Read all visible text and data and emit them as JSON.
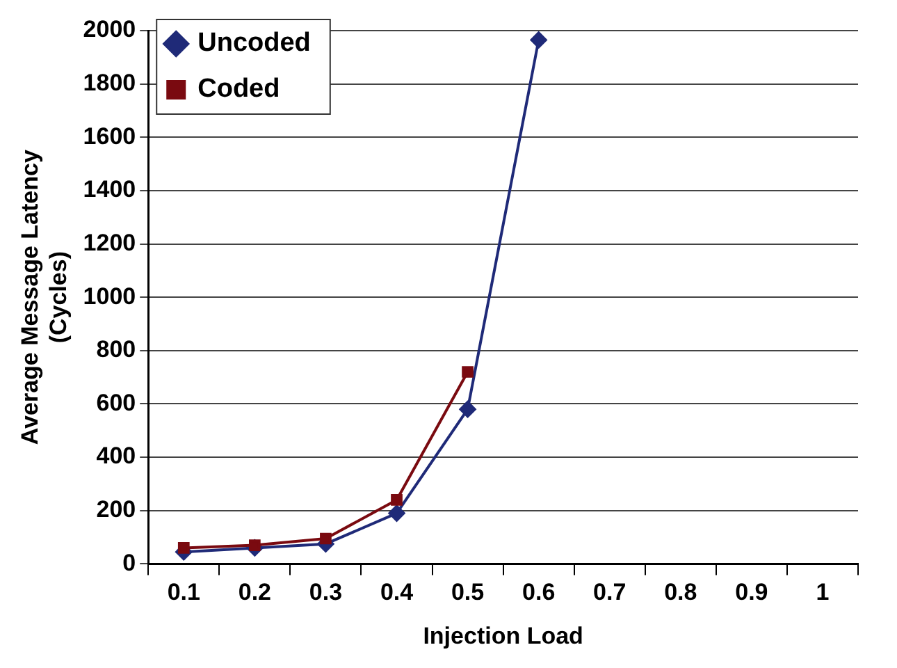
{
  "chart_data": {
    "type": "line",
    "xlabel": "Injection Load",
    "ylabel": "Average Message Latency (Cycles)",
    "categories": [
      "0.1",
      "0.2",
      "0.3",
      "0.4",
      "0.5",
      "0.6",
      "0.7",
      "0.8",
      "0.9",
      "1"
    ],
    "series": [
      {
        "name": "Uncoded",
        "color": "#1f2a78",
        "marker": "diamond",
        "values": [
          45,
          60,
          75,
          190,
          580,
          1965,
          null,
          null,
          null,
          null
        ]
      },
      {
        "name": "Coded",
        "color": "#7a0a10",
        "marker": "square",
        "values": [
          60,
          70,
          95,
          240,
          720,
          null,
          null,
          null,
          null,
          null
        ]
      }
    ],
    "ylim": [
      0,
      2000
    ],
    "yticks": [
      0,
      200,
      400,
      600,
      800,
      1000,
      1200,
      1400,
      1600,
      1800,
      2000
    ],
    "grid": "y",
    "legend": "top left",
    "line_style": "solid"
  }
}
